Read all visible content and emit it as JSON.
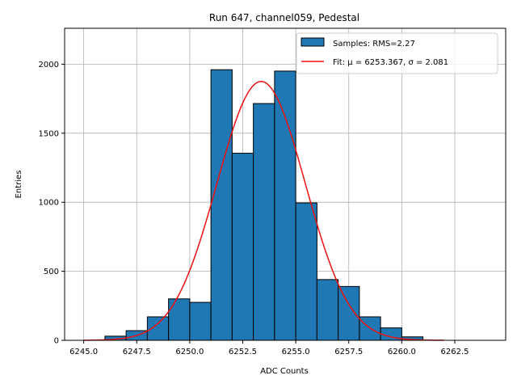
{
  "chart_data": {
    "type": "bar",
    "title": "Run 647, channel059, Pedestal",
    "xlabel": "ADC Counts",
    "ylabel": "Entries",
    "xlim": [
      6244.1,
      6264.9
    ],
    "ylim": [
      0,
      2260
    ],
    "grid": true,
    "legend_position": "top-right",
    "xticks": [
      6245.0,
      6247.5,
      6250.0,
      6252.5,
      6255.0,
      6257.5,
      6260.0,
      6262.5
    ],
    "xtick_labels": [
      "6245.0",
      "6247.5",
      "6250.0",
      "6252.5",
      "6255.0",
      "6257.5",
      "6260.0",
      "6262.5"
    ],
    "yticks": [
      0,
      500,
      1000,
      1500,
      2000
    ],
    "ytick_labels": [
      "0",
      "500",
      "1000",
      "1500",
      "2000"
    ],
    "bin_width": 1,
    "bins": [
      {
        "x0": 6246,
        "value": 30
      },
      {
        "x0": 6247,
        "value": 70
      },
      {
        "x0": 6248,
        "value": 170
      },
      {
        "x0": 6249,
        "value": 300
      },
      {
        "x0": 6250,
        "value": 275
      },
      {
        "x0": 6251,
        "value": 1960
      },
      {
        "x0": 6252,
        "value": 1355
      },
      {
        "x0": 6253,
        "value": 1715
      },
      {
        "x0": 6254,
        "value": 1950
      },
      {
        "x0": 6255,
        "value": 995
      },
      {
        "x0": 6256,
        "value": 440
      },
      {
        "x0": 6257,
        "value": 390
      },
      {
        "x0": 6258,
        "value": 170
      },
      {
        "x0": 6259,
        "value": 90
      },
      {
        "x0": 6260,
        "value": 25
      }
    ],
    "bar_color": "#1f77b4",
    "fit": {
      "mu": 6253.367,
      "sigma": 2.081,
      "peak": 1875,
      "x_range": [
        6245.0,
        6262.0
      ],
      "color": "#ee1111"
    },
    "legend": [
      {
        "label": "Samples: RMS=2.27",
        "kind": "patch",
        "color": "#1f77b4"
      },
      {
        "label": "Fit: μ = 6253.367, σ = 2.081",
        "kind": "line",
        "color": "#ee1111"
      }
    ]
  }
}
